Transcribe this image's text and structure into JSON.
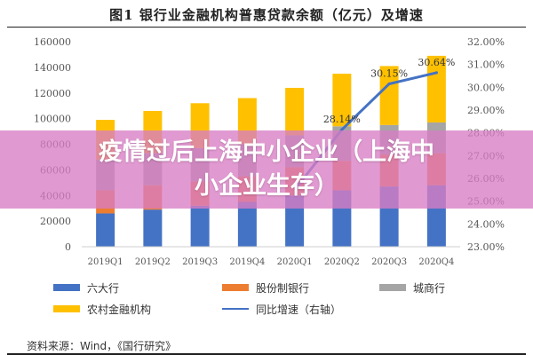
{
  "page": {
    "title": "图1  银行业金融机构普惠贷款余额（亿元）及增速",
    "overlay_line1": "疫情过后上海中小企业（上海中",
    "overlay_line2": "小企业生存）",
    "source": "资料来源：Wind，《国行研究》"
  },
  "colors": {
    "series1": "#4472c4",
    "series2": "#ed7d31",
    "series3": "#a5a5a5",
    "series4": "#ffc000",
    "line": "#4472c4",
    "overlay": "#d87dc4"
  },
  "chart_data": {
    "type": "bar",
    "title": "图1  银行业金融机构普惠贷款余额（亿元）及增速",
    "categories": [
      "2019Q1",
      "2019Q2",
      "2019Q3",
      "2019Q4",
      "2020Q1",
      "2020Q2",
      "2020Q3",
      "2020Q4"
    ],
    "left_axis": {
      "ylim": [
        0,
        160000
      ],
      "ticks": [
        "0",
        "20000",
        "40000",
        "60000",
        "80000",
        "100000",
        "120000",
        "140000",
        "160000"
      ]
    },
    "right_axis": {
      "ylim": [
        23.0,
        32.0
      ],
      "ticks": [
        "23.00%",
        "24.00%",
        "25.00%",
        "26.00%",
        "27.00%",
        "28.00%",
        "29.00%",
        "30.00%",
        "31.00%",
        "32.00%"
      ]
    },
    "series": [
      {
        "name": "六大行",
        "values": [
          26000,
          29000,
          32000,
          35000,
          40000,
          44000,
          47000,
          48000
        ]
      },
      {
        "name": "股份制银行",
        "values": [
          18000,
          19000,
          19000,
          20000,
          22000,
          23000,
          25000,
          25000
        ]
      },
      {
        "name": "城商行",
        "values": [
          24000,
          25000,
          26000,
          25000,
          25000,
          27000,
          23000,
          24000
        ]
      },
      {
        "name": "农村金融机构",
        "values": [
          31000,
          33000,
          35000,
          36000,
          37000,
          41000,
          46000,
          52000
        ]
      }
    ],
    "line_series": {
      "name": "同比增速（右轴）",
      "values": [
        null,
        null,
        null,
        null,
        25.5,
        28.14,
        30.15,
        30.64
      ],
      "labels": [
        "",
        "",
        "",
        "",
        "",
        "28.14%",
        "30.15%",
        "30.64%"
      ]
    },
    "legend": {
      "items": [
        "六大行",
        "股份制银行",
        "城商行",
        "农村金融机构",
        "同比增速（右轴）"
      ],
      "placement": "bottom"
    },
    "grid": false
  }
}
